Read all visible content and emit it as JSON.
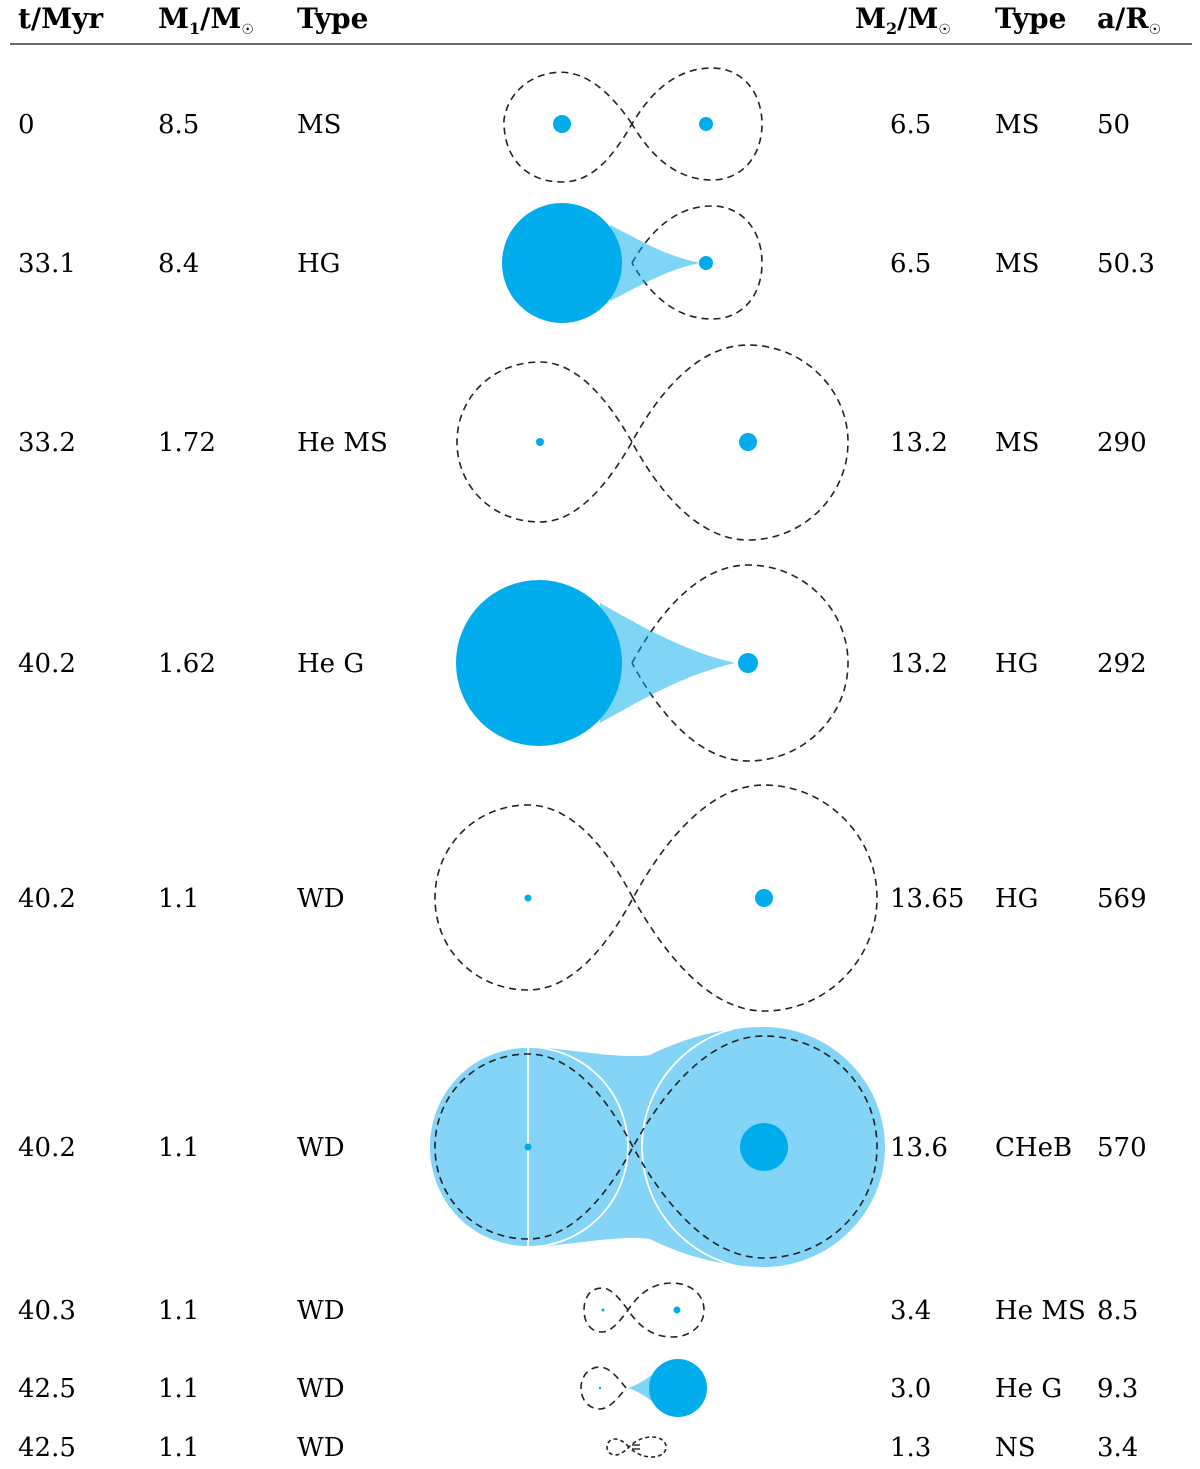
{
  "table": {
    "headers": {
      "t": "t/Myr",
      "m1_main": "M",
      "m1_sub": "1",
      "m1_tail": "/M",
      "type1": "Type",
      "m2_main": "M",
      "m2_sub": "2",
      "m2_tail": "/M",
      "type2": "Type",
      "a_main": "a/R",
      "sun_symbol": "☉"
    },
    "rows": [
      {
        "t": "0",
        "m1": "8.5",
        "type1": "MS",
        "m2": "6.5",
        "type2": "MS",
        "a": "50",
        "state": "detached"
      },
      {
        "t": "33.1",
        "m1": "8.4",
        "type1": "HG",
        "m2": "6.5",
        "type2": "MS",
        "a": "50.3",
        "state": "star 1 fills Roche lobe, mass transfer to star 2"
      },
      {
        "t": "33.2",
        "m1": "1.72",
        "type1": "He MS",
        "m2": "13.2",
        "type2": "MS",
        "a": "290",
        "state": "detached"
      },
      {
        "t": "40.2",
        "m1": "1.62",
        "type1": "He G",
        "m2": "13.2",
        "type2": "HG",
        "a": "292",
        "state": "star 1 fills Roche lobe, mass transfer to star 2"
      },
      {
        "t": "40.2",
        "m1": "1.1",
        "type1": "WD",
        "m2": "13.65",
        "type2": "HG",
        "a": "569",
        "state": "detached"
      },
      {
        "t": "40.2",
        "m1": "1.1",
        "type1": "WD",
        "m2": "13.6",
        "type2": "CHeB",
        "a": "570",
        "state": "common envelope"
      },
      {
        "t": "40.3",
        "m1": "1.1",
        "type1": "WD",
        "m2": "3.4",
        "type2": "He MS",
        "a": "8.5",
        "state": "detached"
      },
      {
        "t": "42.5",
        "m1": "1.1",
        "type1": "WD",
        "m2": "3.0",
        "type2": "He G",
        "a": "9.3",
        "state": "star 2 fills Roche lobe, mass transfer to star 1"
      },
      {
        "t": "42.5",
        "m1": "1.1",
        "type1": "WD",
        "m2": "1.3",
        "type2": "NS",
        "a": "3.4",
        "state": "detached"
      }
    ]
  },
  "colors": {
    "star": "#00acec",
    "envelope": "#83d4f6",
    "roche_lobe": "#222222"
  }
}
